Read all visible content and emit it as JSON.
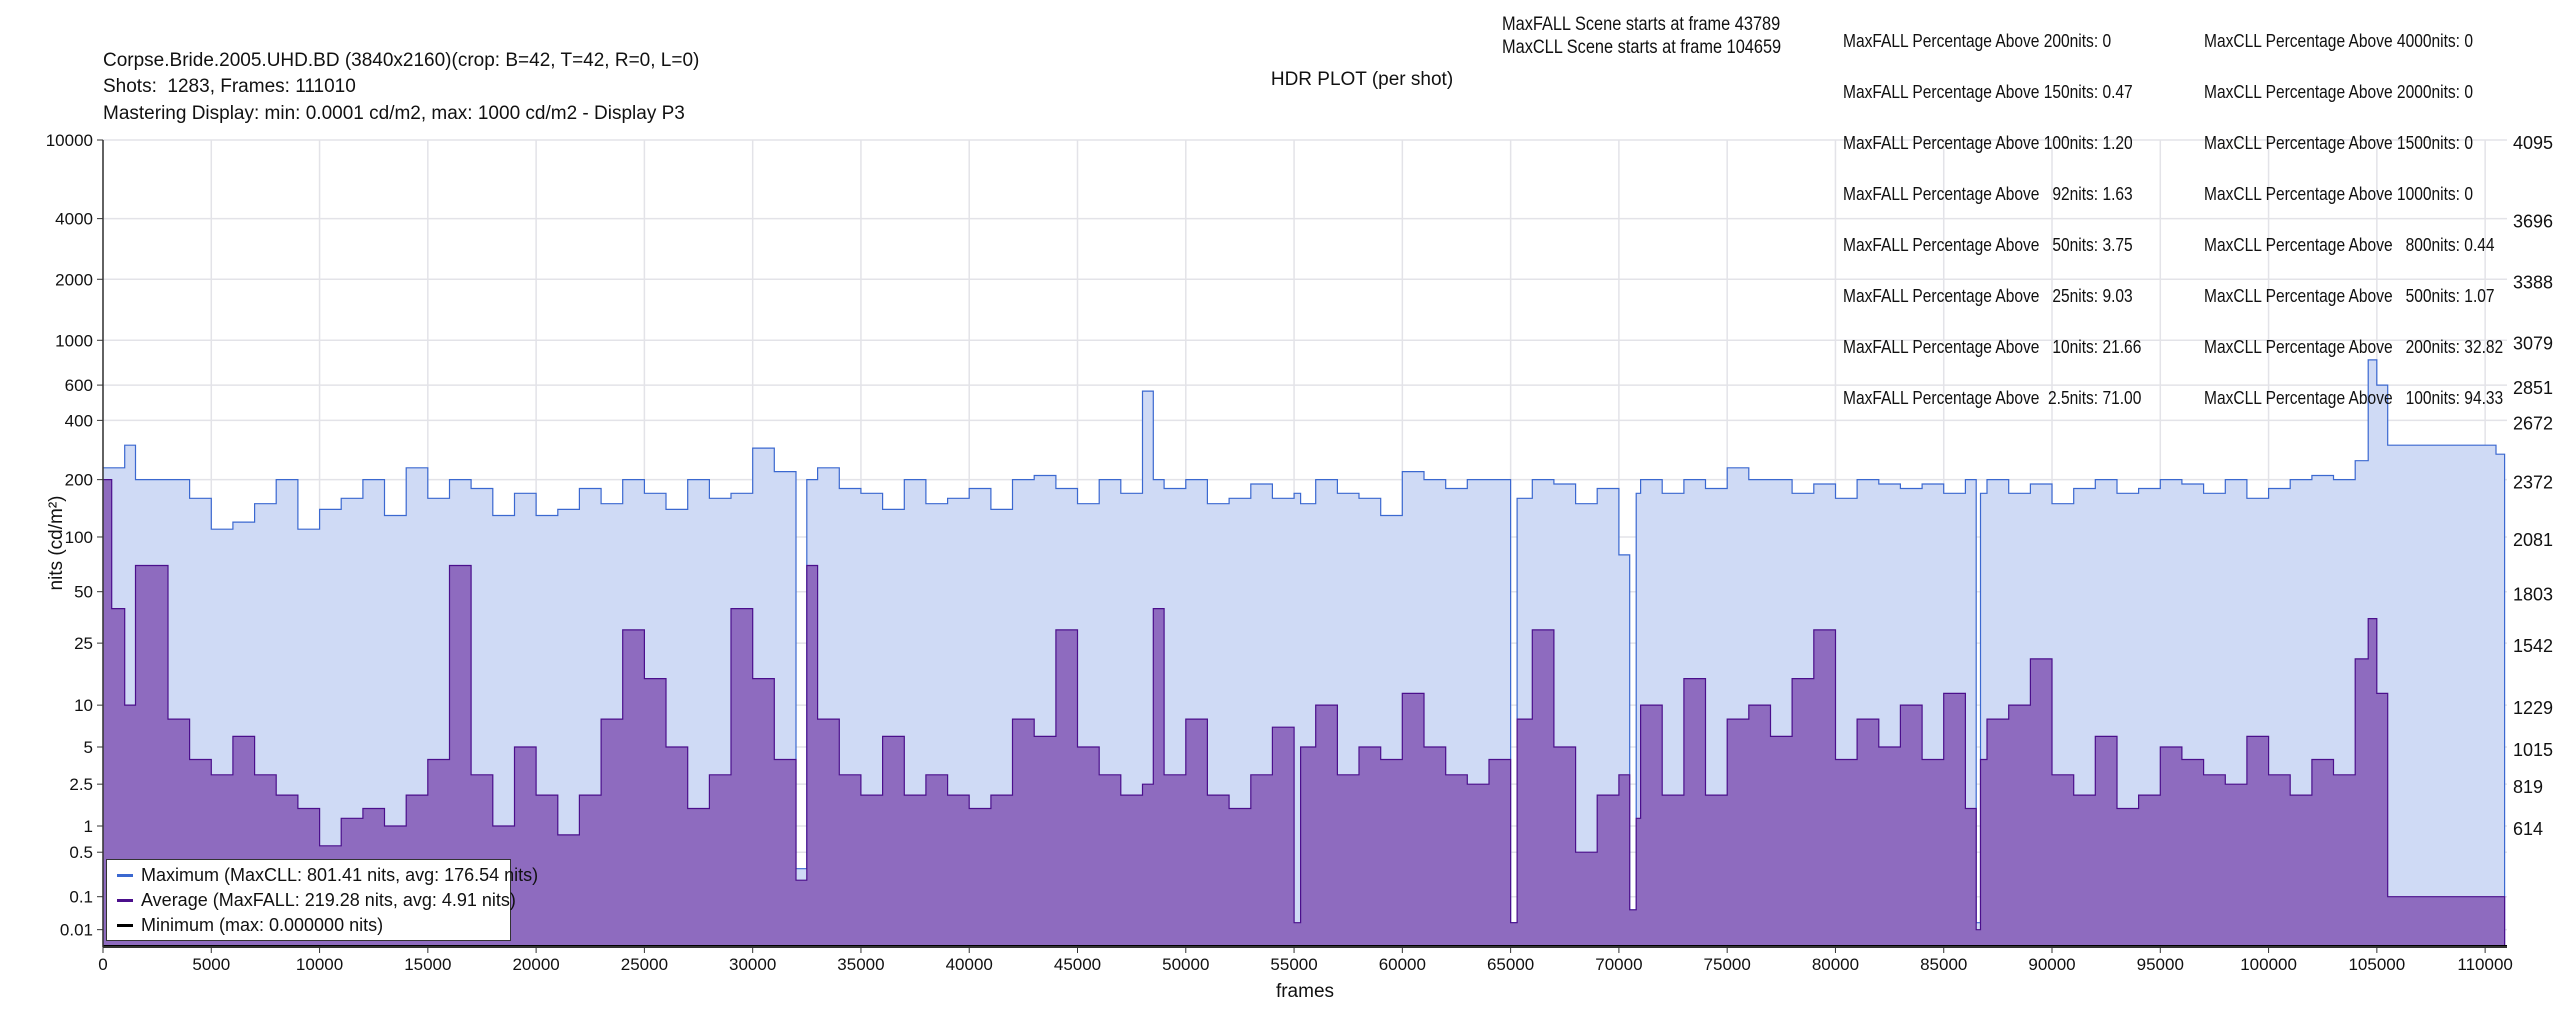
{
  "header": {
    "file_line": "Corpse.Bride.2005.UHD.BD (3840x2160)(crop: B=42, T=42, R=0, L=0)",
    "shots_line": "Shots:  1283, Frames: 111010",
    "mastering_line": "Mastering Display: min: 0.0001 cd/m2, max: 1000 cd/m2 - Display P3",
    "maxfall_scene": "MaxFALL Scene starts at frame 43789",
    "maxcll_scene": "MaxCLL Scene starts at frame 104659"
  },
  "stats": {
    "maxfall": [
      "MaxFALL Percentage Above 200nits: 0",
      "MaxFALL Percentage Above 150nits: 0.47",
      "MaxFALL Percentage Above 100nits: 1.20",
      "MaxFALL Percentage Above   92nits: 1.63",
      "MaxFALL Percentage Above   50nits: 3.75",
      "MaxFALL Percentage Above   25nits: 9.03",
      "MaxFALL Percentage Above   10nits: 21.66",
      "MaxFALL Percentage Above  2.5nits: 71.00"
    ],
    "maxcll": [
      "MaxCLL Percentage Above 4000nits: 0",
      "MaxCLL Percentage Above 2000nits: 0",
      "MaxCLL Percentage Above 1500nits: 0",
      "MaxCLL Percentage Above 1000nits: 0",
      "MaxCLL Percentage Above   800nits: 0.44",
      "MaxCLL Percentage Above   500nits: 1.07",
      "MaxCLL Percentage Above   200nits: 32.82",
      "MaxCLL Percentage Above   100nits: 94.33"
    ]
  },
  "chart_data": {
    "type": "area",
    "title": "HDR PLOT (per shot)",
    "xlabel": "frames",
    "ylabel": "nits (cd/m²)",
    "xlim": [
      0,
      111010
    ],
    "ylim": [
      0,
      10000
    ],
    "y_scale": "PQ (ST.2084)",
    "grid": true,
    "legend_position": "bottom-left",
    "x_ticks": [
      0,
      5000,
      10000,
      15000,
      20000,
      25000,
      30000,
      35000,
      40000,
      45000,
      50000,
      55000,
      60000,
      65000,
      70000,
      75000,
      80000,
      85000,
      90000,
      95000,
      100000,
      105000,
      110000
    ],
    "y_ticks": [
      0.01,
      0.1,
      0.5,
      1,
      2.5,
      5,
      10,
      25,
      50,
      100,
      200,
      400,
      600,
      1000,
      2000,
      4000,
      10000
    ],
    "y2_ticks": [
      {
        "nits": 10000,
        "label": "4095"
      },
      {
        "nits": 4000,
        "label": "3696"
      },
      {
        "nits": 2000,
        "label": "3388"
      },
      {
        "nits": 1000,
        "label": "3079"
      },
      {
        "nits": 600,
        "label": "2851"
      },
      {
        "nits": 400,
        "label": "2672"
      },
      {
        "nits": 200,
        "label": "2372"
      },
      {
        "nits": 100,
        "label": "2081"
      },
      {
        "nits": 50,
        "label": "1803"
      },
      {
        "nits": 25,
        "label": "1542"
      },
      {
        "nits": 10,
        "label": "1229"
      },
      {
        "nits": 5,
        "label": "1015"
      },
      {
        "nits": 2.5,
        "label": "819"
      },
      {
        "nits": 1,
        "label": "614"
      }
    ],
    "colors": {
      "max_line": "#3b68d0",
      "max_fill": "#cfdaf5",
      "avg_line": "#4b0f8c",
      "avg_fill": "#8e6bbf",
      "min_line": "#000000"
    },
    "legend": [
      "Maximum (MaxCLL: 801.41 nits, avg: 176.54 nits)",
      "Average (MaxFALL: 219.28 nits, avg: 4.91 nits)",
      "Minimum (max: 0.000000 nits)"
    ],
    "segments_columns": [
      "start_frame",
      "max_nits",
      "avg_nits"
    ],
    "segments": [
      [
        0,
        230,
        200
      ],
      [
        400,
        230,
        40
      ],
      [
        1000,
        300,
        10
      ],
      [
        1500,
        200,
        70
      ],
      [
        3000,
        200,
        8
      ],
      [
        4000,
        160,
        4
      ],
      [
        5000,
        110,
        3
      ],
      [
        6000,
        120,
        6
      ],
      [
        7000,
        150,
        3
      ],
      [
        8000,
        200,
        2
      ],
      [
        9000,
        110,
        1.5
      ],
      [
        10000,
        140,
        0.6
      ],
      [
        11000,
        160,
        1.2
      ],
      [
        12000,
        200,
        1.5
      ],
      [
        13000,
        130,
        1
      ],
      [
        14000,
        230,
        2
      ],
      [
        15000,
        160,
        4
      ],
      [
        16000,
        200,
        70
      ],
      [
        17000,
        180,
        3
      ],
      [
        18000,
        130,
        1
      ],
      [
        19000,
        170,
        5
      ],
      [
        20000,
        130,
        2
      ],
      [
        21000,
        140,
        0.8
      ],
      [
        22000,
        180,
        2
      ],
      [
        23000,
        150,
        8
      ],
      [
        24000,
        200,
        30
      ],
      [
        25000,
        170,
        15
      ],
      [
        26000,
        140,
        5
      ],
      [
        27000,
        200,
        1.5
      ],
      [
        28000,
        160,
        3
      ],
      [
        29000,
        170,
        40
      ],
      [
        30000,
        290,
        15
      ],
      [
        31000,
        220,
        4
      ],
      [
        32000,
        0.3,
        0.2
      ],
      [
        32500,
        200,
        70
      ],
      [
        33000,
        230,
        8
      ],
      [
        34000,
        180,
        3
      ],
      [
        35000,
        170,
        2
      ],
      [
        36000,
        140,
        6
      ],
      [
        37000,
        200,
        2
      ],
      [
        38000,
        150,
        3
      ],
      [
        39000,
        160,
        2
      ],
      [
        40000,
        180,
        1.5
      ],
      [
        41000,
        140,
        2
      ],
      [
        42000,
        200,
        8
      ],
      [
        43000,
        210,
        6
      ],
      [
        44000,
        180,
        30
      ],
      [
        45000,
        150,
        5
      ],
      [
        46000,
        200,
        3
      ],
      [
        47000,
        170,
        2
      ],
      [
        48000,
        560,
        2.5
      ],
      [
        48500,
        200,
        40
      ],
      [
        49000,
        180,
        3
      ],
      [
        50000,
        200,
        8
      ],
      [
        51000,
        150,
        2
      ],
      [
        52000,
        160,
        1.5
      ],
      [
        53000,
        190,
        3
      ],
      [
        54000,
        160,
        7
      ],
      [
        55000,
        170,
        0.02
      ],
      [
        55300,
        150,
        5
      ],
      [
        56000,
        200,
        10
      ],
      [
        57000,
        170,
        3
      ],
      [
        58000,
        160,
        5
      ],
      [
        59000,
        130,
        4
      ],
      [
        60000,
        220,
        12
      ],
      [
        61000,
        200,
        5
      ],
      [
        62000,
        180,
        3
      ],
      [
        63000,
        200,
        2.5
      ],
      [
        64000,
        200,
        4
      ],
      [
        65000,
        0.02,
        0.02
      ],
      [
        65300,
        160,
        8
      ],
      [
        66000,
        200,
        30
      ],
      [
        67000,
        190,
        5
      ],
      [
        68000,
        150,
        0.5
      ],
      [
        69000,
        180,
        2
      ],
      [
        70000,
        80,
        3
      ],
      [
        70500,
        0.05,
        0.05
      ],
      [
        70800,
        170,
        1.2
      ],
      [
        71000,
        200,
        10
      ],
      [
        72000,
        170,
        2
      ],
      [
        73000,
        200,
        15
      ],
      [
        74000,
        180,
        2
      ],
      [
        75000,
        230,
        8
      ],
      [
        76000,
        200,
        10
      ],
      [
        77000,
        200,
        6
      ],
      [
        78000,
        170,
        15
      ],
      [
        79000,
        190,
        30
      ],
      [
        80000,
        160,
        4
      ],
      [
        81000,
        200,
        8
      ],
      [
        82000,
        190,
        5
      ],
      [
        83000,
        180,
        10
      ],
      [
        84000,
        190,
        4
      ],
      [
        85000,
        170,
        12
      ],
      [
        86000,
        200,
        1.5
      ],
      [
        86500,
        0.02,
        0.01
      ],
      [
        86700,
        170,
        4
      ],
      [
        87000,
        200,
        8
      ],
      [
        88000,
        170,
        10
      ],
      [
        89000,
        190,
        20
      ],
      [
        90000,
        150,
        3
      ],
      [
        91000,
        180,
        2
      ],
      [
        92000,
        200,
        6
      ],
      [
        93000,
        170,
        1.5
      ],
      [
        94000,
        180,
        2
      ],
      [
        95000,
        200,
        5
      ],
      [
        96000,
        190,
        4
      ],
      [
        97000,
        170,
        3
      ],
      [
        98000,
        200,
        2.5
      ],
      [
        99000,
        160,
        6
      ],
      [
        100000,
        180,
        3
      ],
      [
        101000,
        200,
        2
      ],
      [
        102000,
        210,
        4
      ],
      [
        103000,
        200,
        3
      ],
      [
        104000,
        250,
        20
      ],
      [
        104600,
        800,
        35
      ],
      [
        105000,
        600,
        12
      ],
      [
        105500,
        300,
        0.1
      ],
      [
        110500,
        270,
        0.1
      ],
      [
        110900,
        0,
        0
      ]
    ]
  }
}
